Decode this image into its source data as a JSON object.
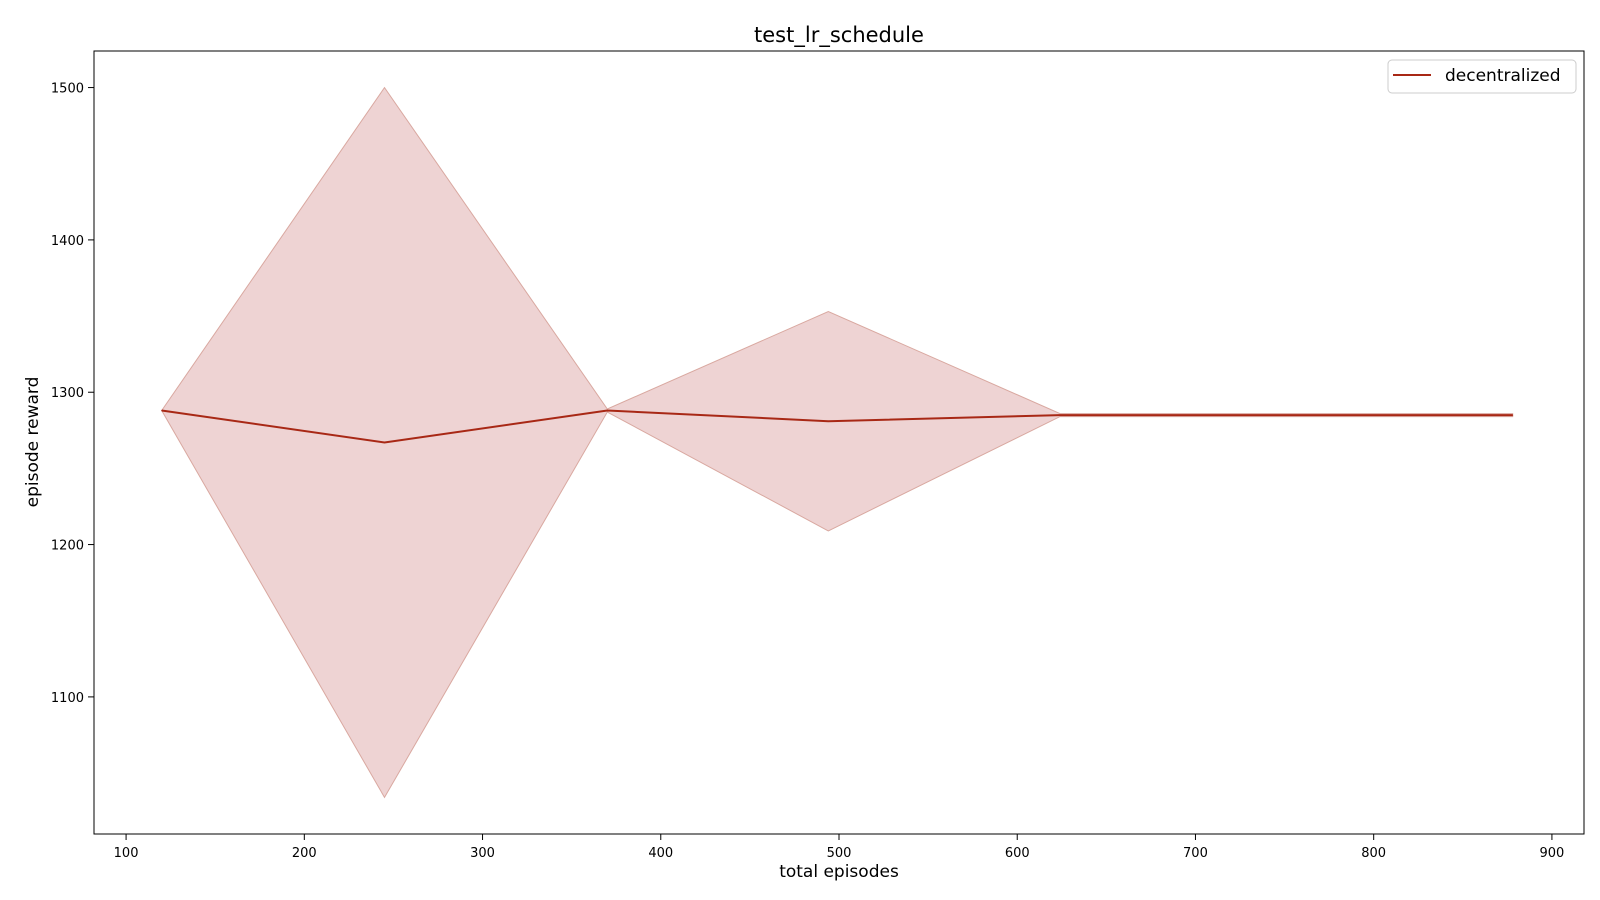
{
  "chart_data": {
    "type": "line",
    "title": "test_lr_schedule",
    "xlabel": "total episodes",
    "ylabel": "episode reward",
    "xlim": [
      82,
      918
    ],
    "ylim": [
      1010,
      1524
    ],
    "xticks": [
      100,
      200,
      300,
      400,
      500,
      600,
      700,
      800,
      900
    ],
    "yticks": [
      1100,
      1200,
      1300,
      1400,
      1500
    ],
    "grid": false,
    "legend_position": "top-right",
    "series": [
      {
        "name": "decentralized",
        "color": "#a82815",
        "fill_color": "#e8c4c4",
        "x": [
          120,
          245,
          370,
          494,
          624,
          750,
          878
        ],
        "y": [
          1288,
          1267,
          1288,
          1281,
          1285,
          1285,
          1285
        ],
        "upper": [
          1288,
          1500,
          1289,
          1353,
          1286,
          1286,
          1286
        ],
        "lower": [
          1288,
          1034,
          1287,
          1209,
          1284,
          1284,
          1284
        ]
      }
    ]
  }
}
